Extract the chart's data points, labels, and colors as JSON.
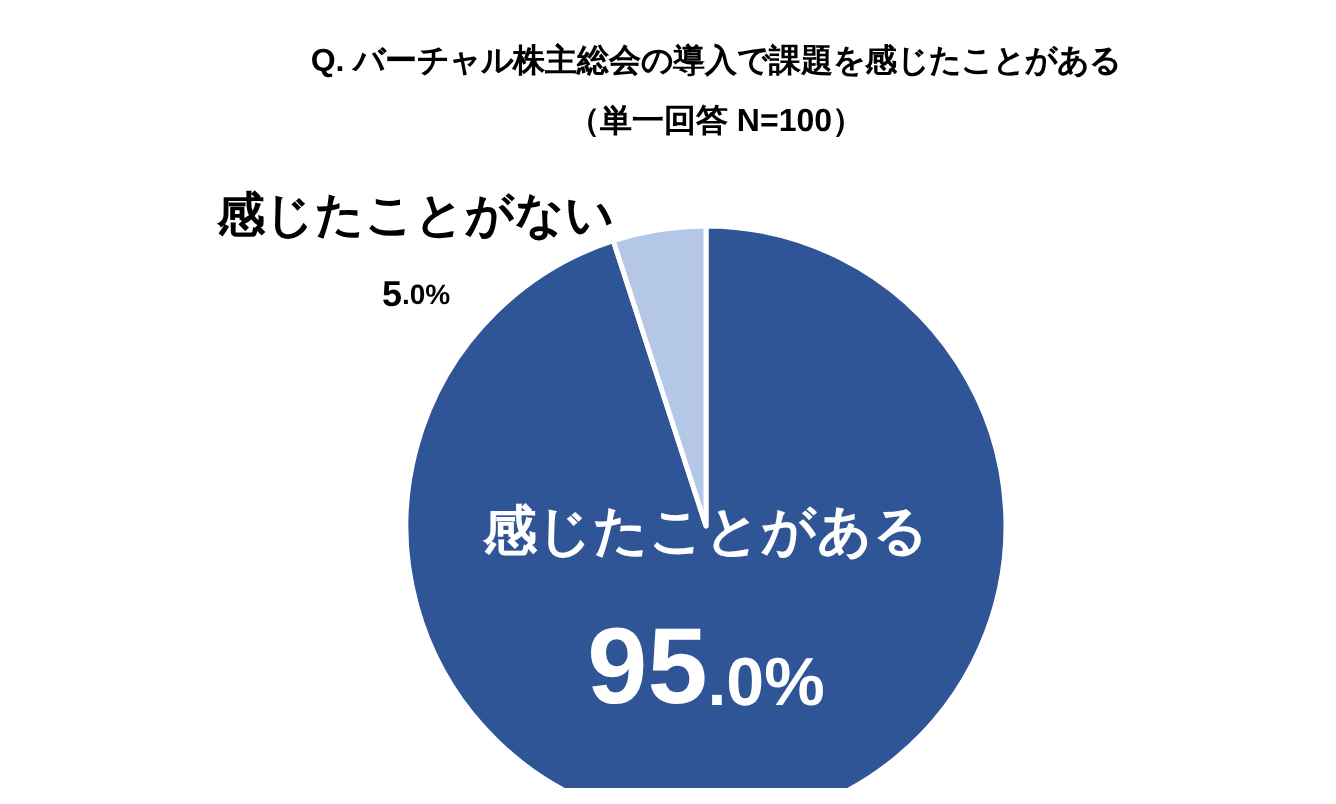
{
  "chart_data": {
    "type": "pie",
    "title": "Q. バーチャル株主総会の導入で課題を感じたことがある",
    "subtitle": "（単一回答 N=100）",
    "categories": [
      "感じたことがある",
      "感じたことがない"
    ],
    "values": [
      95.0,
      5.0
    ],
    "colors": [
      "#2f5597",
      "#b4c7e7"
    ],
    "value_labels": [
      "95.0%",
      "5.0%"
    ],
    "legend": false
  }
}
